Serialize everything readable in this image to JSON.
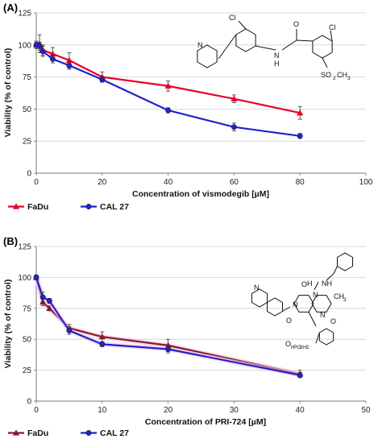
{
  "chart_data": [
    {
      "type": "line",
      "panel_label": "(A)",
      "xlabel": "Concentration of vismodegib [µM]",
      "ylabel": "Viability (% of control)",
      "xlim": [
        0,
        100
      ],
      "ylim": [
        0,
        125
      ],
      "xticks": [
        "0",
        "20",
        "40",
        "60",
        "80",
        "100"
      ],
      "yticks": [
        "0",
        "25",
        "50",
        "75",
        "100",
        "125"
      ],
      "grid": "horizontal",
      "legend_position": "bottom-left",
      "series": [
        {
          "name": "FaDu",
          "color": "#e8002a",
          "marker": "triangle",
          "x": [
            0,
            1,
            2,
            5,
            10,
            20,
            40,
            60,
            80
          ],
          "y": [
            100,
            101,
            96,
            93,
            88,
            75,
            68,
            58,
            47
          ],
          "err": [
            3,
            7,
            4,
            5,
            6,
            4,
            4,
            3,
            5
          ]
        },
        {
          "name": "CAL 27",
          "color": "#2222cc",
          "marker": "circle",
          "x": [
            0,
            1,
            2,
            5,
            10,
            20,
            40,
            60,
            80
          ],
          "y": [
            100,
            99,
            95,
            89,
            84,
            73,
            49,
            36,
            29
          ],
          "err": [
            2,
            3,
            4,
            3,
            3,
            2,
            2,
            3,
            2
          ]
        }
      ],
      "structure": {
        "atoms": [
          "Cl",
          "Cl",
          "N",
          "N",
          "H",
          "O",
          "SO",
          "2",
          "CH",
          "3"
        ]
      }
    },
    {
      "type": "line",
      "panel_label": "(B)",
      "xlabel": "Concentration of PRI-724 [µM]",
      "ylabel": "Viability (% of control)",
      "xlim": [
        0,
        50
      ],
      "ylim": [
        0,
        125
      ],
      "xticks": [
        "0",
        "10",
        "20",
        "30",
        "40",
        "50"
      ],
      "yticks": [
        "0",
        "25",
        "50",
        "75",
        "100",
        "125"
      ],
      "grid": "horizontal",
      "legend_position": "bottom-left",
      "series": [
        {
          "name": "FaDu",
          "color": "#8b1a2b",
          "marker": "triangle",
          "x": [
            0,
            1,
            2,
            5,
            10,
            20,
            40
          ],
          "y": [
            100,
            80,
            75,
            59,
            52,
            45,
            22
          ],
          "err": [
            2,
            3,
            2,
            3,
            4,
            5,
            3
          ]
        },
        {
          "name": "CAL 27",
          "color": "#2222cc",
          "marker": "circle",
          "x": [
            0,
            1,
            2,
            5,
            10,
            20,
            40
          ],
          "y": [
            100,
            84,
            81,
            57,
            46,
            42,
            21
          ],
          "err": [
            2,
            4,
            2,
            3,
            2,
            3,
            2
          ]
        }
      ],
      "structure": {
        "atoms": [
          "N",
          "N",
          "N",
          "N",
          "NH",
          "O",
          "O",
          "O",
          "H",
          "H",
          "PO",
          "3",
          "H",
          "2",
          "O"
        ]
      }
    }
  ]
}
